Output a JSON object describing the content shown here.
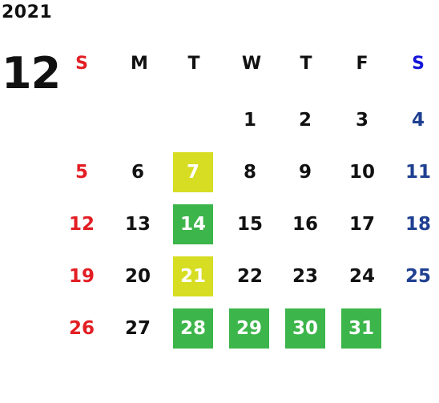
{
  "calendar": {
    "year": "2021",
    "month": "12",
    "weekdays": [
      "S",
      "M",
      "T",
      "W",
      "T",
      "F",
      "S"
    ],
    "weeks": [
      [
        "",
        "",
        "",
        "1",
        "2",
        "3",
        "4"
      ],
      [
        "5",
        "6",
        "7",
        "8",
        "9",
        "10",
        "11"
      ],
      [
        "12",
        "13",
        "14",
        "15",
        "16",
        "17",
        "18"
      ],
      [
        "19",
        "20",
        "21",
        "22",
        "23",
        "24",
        "25"
      ],
      [
        "26",
        "27",
        "28",
        "29",
        "30",
        "31",
        ""
      ]
    ],
    "highlight_colors": {
      "yellow": "#d6dd22",
      "green": "#3cb54a"
    },
    "highlighted_days": {
      "yellow": [
        "7",
        "21"
      ],
      "green": [
        "14",
        "28",
        "29",
        "30",
        "31"
      ]
    },
    "text_colors": {
      "sunday": "#e21e24",
      "saturday_header": "#1515d8",
      "saturday": "#1f3f91",
      "weekday": "#111111"
    }
  }
}
